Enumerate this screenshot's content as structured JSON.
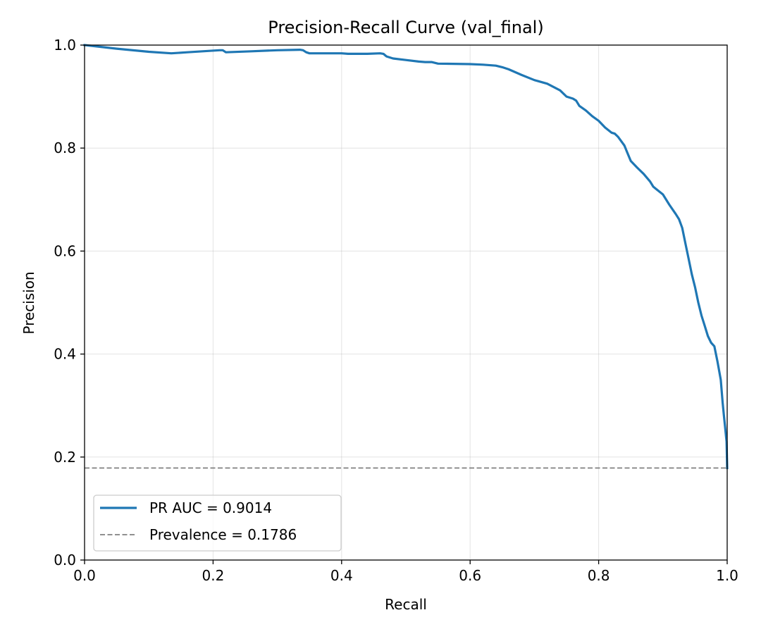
{
  "chart_data": {
    "type": "line",
    "title": "Precision-Recall Curve (val_final)",
    "xlabel": "Recall",
    "ylabel": "Precision",
    "xlim": [
      0.0,
      1.0
    ],
    "ylim": [
      0.0,
      1.0
    ],
    "x_ticks": [
      "0.0",
      "0.2",
      "0.4",
      "0.6",
      "0.8",
      "1.0"
    ],
    "y_ticks": [
      "0.0",
      "0.2",
      "0.4",
      "0.6",
      "0.8",
      "1.0"
    ],
    "grid": true,
    "legend_position": "lower-left",
    "series": [
      {
        "name": "PR AUC = 0.9014",
        "color": "#1f77b4",
        "style": "solid",
        "x": [
          0.0,
          0.05,
          0.1,
          0.135,
          0.16,
          0.21,
          0.215,
          0.22,
          0.26,
          0.3,
          0.335,
          0.34,
          0.345,
          0.35,
          0.36,
          0.4,
          0.41,
          0.42,
          0.44,
          0.46,
          0.465,
          0.47,
          0.48,
          0.5,
          0.52,
          0.53,
          0.54,
          0.55,
          0.6,
          0.62,
          0.64,
          0.65,
          0.66,
          0.68,
          0.7,
          0.72,
          0.74,
          0.75,
          0.76,
          0.765,
          0.77,
          0.78,
          0.79,
          0.8,
          0.81,
          0.82,
          0.825,
          0.83,
          0.84,
          0.845,
          0.85,
          0.86,
          0.87,
          0.88,
          0.885,
          0.89,
          0.9,
          0.91,
          0.92,
          0.925,
          0.93,
          0.935,
          0.94,
          0.945,
          0.95,
          0.955,
          0.96,
          0.965,
          0.97,
          0.975,
          0.98,
          0.985,
          0.99,
          0.993,
          0.995,
          0.997,
          0.999,
          1.0
        ],
        "y": [
          1.0,
          0.993,
          0.987,
          0.984,
          0.986,
          0.99,
          0.99,
          0.986,
          0.988,
          0.99,
          0.991,
          0.99,
          0.986,
          0.984,
          0.984,
          0.984,
          0.983,
          0.983,
          0.983,
          0.984,
          0.983,
          0.978,
          0.974,
          0.971,
          0.968,
          0.967,
          0.967,
          0.964,
          0.963,
          0.962,
          0.96,
          0.957,
          0.953,
          0.942,
          0.932,
          0.925,
          0.912,
          0.9,
          0.896,
          0.892,
          0.882,
          0.873,
          0.862,
          0.853,
          0.84,
          0.83,
          0.828,
          0.822,
          0.805,
          0.79,
          0.775,
          0.762,
          0.75,
          0.735,
          0.725,
          0.72,
          0.71,
          0.69,
          0.672,
          0.662,
          0.645,
          0.615,
          0.585,
          0.555,
          0.53,
          0.5,
          0.475,
          0.455,
          0.435,
          0.422,
          0.415,
          0.385,
          0.35,
          0.305,
          0.28,
          0.255,
          0.23,
          0.1786
        ]
      },
      {
        "name": "Prevalence = 0.1786",
        "color": "#808080",
        "style": "dashed",
        "x": [
          0.0,
          1.0
        ],
        "y": [
          0.1786,
          0.1786
        ]
      }
    ]
  }
}
